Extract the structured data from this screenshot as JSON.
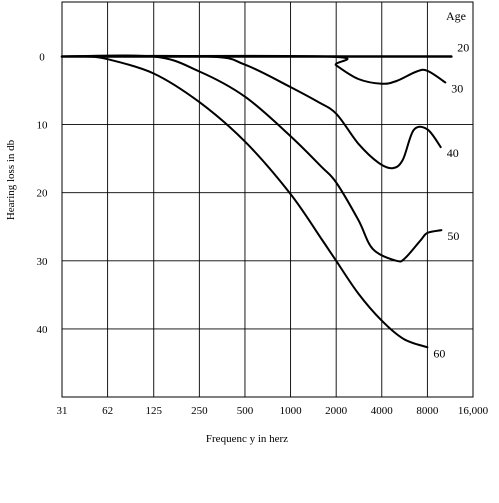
{
  "chart_data": {
    "type": "line",
    "title": "",
    "xlabel": "Frequenc y in herz",
    "ylabel": "Hearing loss in db",
    "x_scale": "log2",
    "x_ticks": [
      31,
      62,
      125,
      250,
      500,
      1000,
      2000,
      4000,
      8000,
      16000
    ],
    "x_tick_labels": [
      "31",
      "62",
      "125",
      "250",
      "500",
      "1000",
      "2000",
      "4000",
      "8000",
      "16,000"
    ],
    "y_ticks": [
      0,
      10,
      20,
      30,
      40
    ],
    "y_tick_labels": [
      "0",
      "10",
      "20",
      "30",
      "40"
    ],
    "ylim": [
      -8,
      50
    ],
    "y_inverted": true,
    "grid": true,
    "legend_title": "Age",
    "legend_placement": "right, labels at line ends",
    "series": [
      {
        "name": "20",
        "x": [
          31,
          1500,
          2000,
          4000,
          8000,
          11500
        ],
        "y": [
          0,
          0,
          0,
          0,
          0,
          0
        ]
      },
      {
        "name": "30",
        "x": [
          31,
          1700,
          2000,
          2800,
          4000,
          5000,
          6800,
          8000,
          10500
        ],
        "y": [
          0,
          0,
          1.3,
          3.3,
          4,
          3.6,
          2.2,
          2.1,
          3.8
        ]
      },
      {
        "name": "40",
        "x": [
          31,
          280,
          500,
          1000,
          1500,
          2000,
          2800,
          3800,
          4700,
          5500,
          6500,
          8000,
          9800
        ],
        "y": [
          0,
          0,
          1.2,
          4.5,
          6.6,
          8.4,
          12.8,
          15.6,
          16.4,
          15.2,
          10.8,
          10.7,
          13.3
        ]
      },
      {
        "name": "50",
        "x": [
          31,
          125,
          250,
          500,
          1000,
          1600,
          2000,
          2800,
          3500,
          5000,
          5700,
          7200,
          8000,
          9900
        ],
        "y": [
          0,
          0,
          2.2,
          5.9,
          11.7,
          16.2,
          18.5,
          24,
          28.3,
          30,
          29.6,
          27,
          25.9,
          25.5
        ]
      },
      {
        "name": "60",
        "x": [
          31,
          45,
          62,
          125,
          250,
          500,
          1000,
          1600,
          2000,
          2800,
          4000,
          5600,
          8000
        ],
        "y": [
          0,
          0,
          0.4,
          2.5,
          6.7,
          12.5,
          20.2,
          26.8,
          30,
          34.8,
          38.8,
          41.5,
          42.7
        ]
      }
    ]
  }
}
